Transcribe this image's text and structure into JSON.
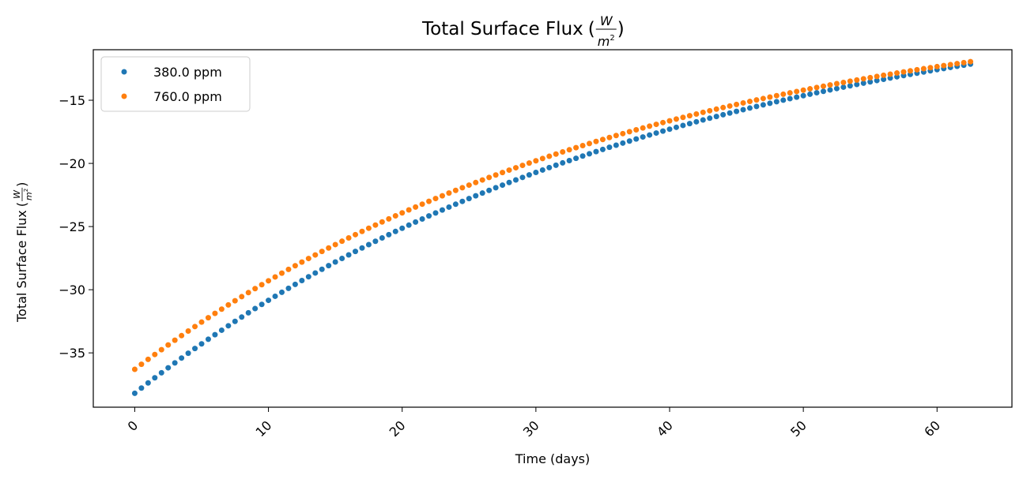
{
  "chart_data": {
    "type": "scatter",
    "title": "Total Surface Flux",
    "title_unit": {
      "numerator": "W",
      "denominator": "m",
      "exponent": "2"
    },
    "xlabel": "Time (days)",
    "ylabel": "Total Surface Flux",
    "ylabel_unit": {
      "numerator": "W",
      "denominator": "m",
      "exponent": "2"
    },
    "xlim": [
      -3.1,
      65.6
    ],
    "ylim": [
      -39.3,
      -11.0
    ],
    "xticks": [
      0,
      10,
      20,
      30,
      40,
      50,
      60
    ],
    "xtick_labels": [
      "0",
      "10",
      "20",
      "30",
      "40",
      "50",
      "60"
    ],
    "xtick_rotation_deg": 45,
    "yticks": [
      -35,
      -30,
      -25,
      -20,
      -15
    ],
    "ytick_labels": [
      "−35",
      "−30",
      "−25",
      "−20",
      "−15"
    ],
    "legend_position": "top-left",
    "grid": false,
    "x_start": 0,
    "x_step": 0.5,
    "num_points": 126,
    "series": [
      {
        "name": "380.0 ppm",
        "color": "#1f77b4",
        "marker": "point",
        "start_value": -38.2,
        "end_value": -12.4,
        "asymptote": -5.5,
        "decay_rate": 0.0255
      },
      {
        "name": "760.0 ppm",
        "color": "#ff7f0e",
        "marker": "point",
        "start_value": -36.3,
        "end_value": -12.0,
        "asymptote": -6.2,
        "decay_rate": 0.0265
      }
    ]
  }
}
